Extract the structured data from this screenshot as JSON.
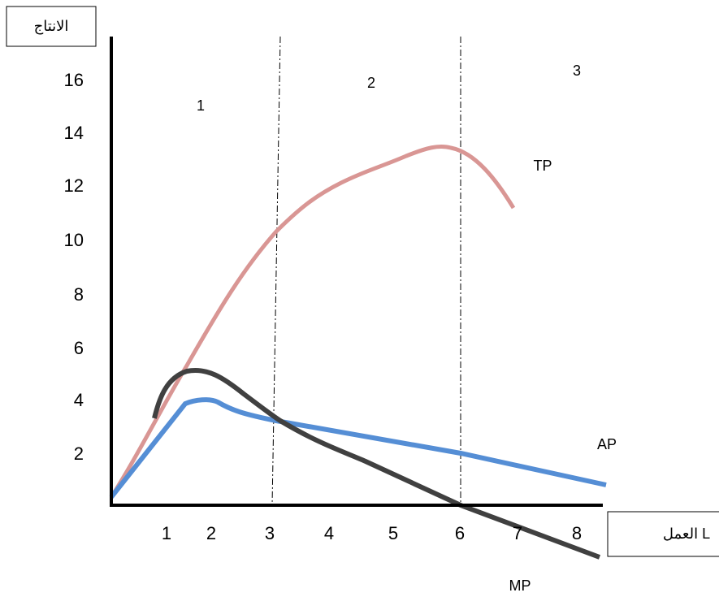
{
  "y_axis": {
    "title": "الانتاج",
    "ticks": [
      16,
      14,
      12,
      10,
      8,
      6,
      4,
      2
    ]
  },
  "x_axis": {
    "title": "العمل L",
    "ticks": [
      1,
      2,
      3,
      4,
      5,
      6,
      7,
      8
    ]
  },
  "regions": [
    "1",
    "2",
    "3"
  ],
  "curves": {
    "tp": "TP",
    "ap": "AP",
    "mp": "MP"
  }
}
